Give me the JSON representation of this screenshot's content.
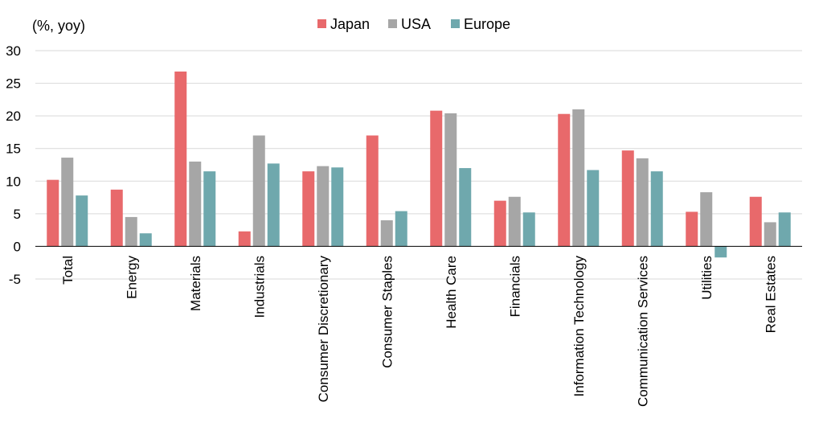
{
  "chart_data": {
    "type": "bar",
    "title": "",
    "ylabel": "(%, yoy)",
    "xlabel": "",
    "ylim": [
      -5,
      30
    ],
    "yticks": [
      -5,
      0,
      5,
      10,
      15,
      20,
      25,
      30
    ],
    "grid": true,
    "legend_position": "top-center",
    "categories": [
      "Total",
      "Energy",
      "Materials",
      "Industrials",
      "Consumer Discretionary",
      "Consumer Staples",
      "Health Care",
      "Financials",
      "Information Technology",
      "Communication Services",
      "Utilities",
      "Real Estates"
    ],
    "series": [
      {
        "name": "Japan",
        "color": "#e8696b",
        "values": [
          10.2,
          8.7,
          26.8,
          2.3,
          11.5,
          17.0,
          20.8,
          7.0,
          20.3,
          14.7,
          5.3,
          7.6
        ]
      },
      {
        "name": "USA",
        "color": "#a6a6a6",
        "values": [
          13.6,
          4.5,
          13.0,
          17.0,
          12.3,
          4.0,
          20.4,
          7.6,
          21.0,
          13.5,
          8.3,
          3.7
        ]
      },
      {
        "name": "Europe",
        "color": "#6fa8ad",
        "values": [
          7.8,
          2.0,
          11.5,
          12.7,
          12.1,
          5.4,
          12.0,
          5.2,
          11.7,
          11.5,
          -1.7,
          5.2
        ]
      }
    ]
  }
}
